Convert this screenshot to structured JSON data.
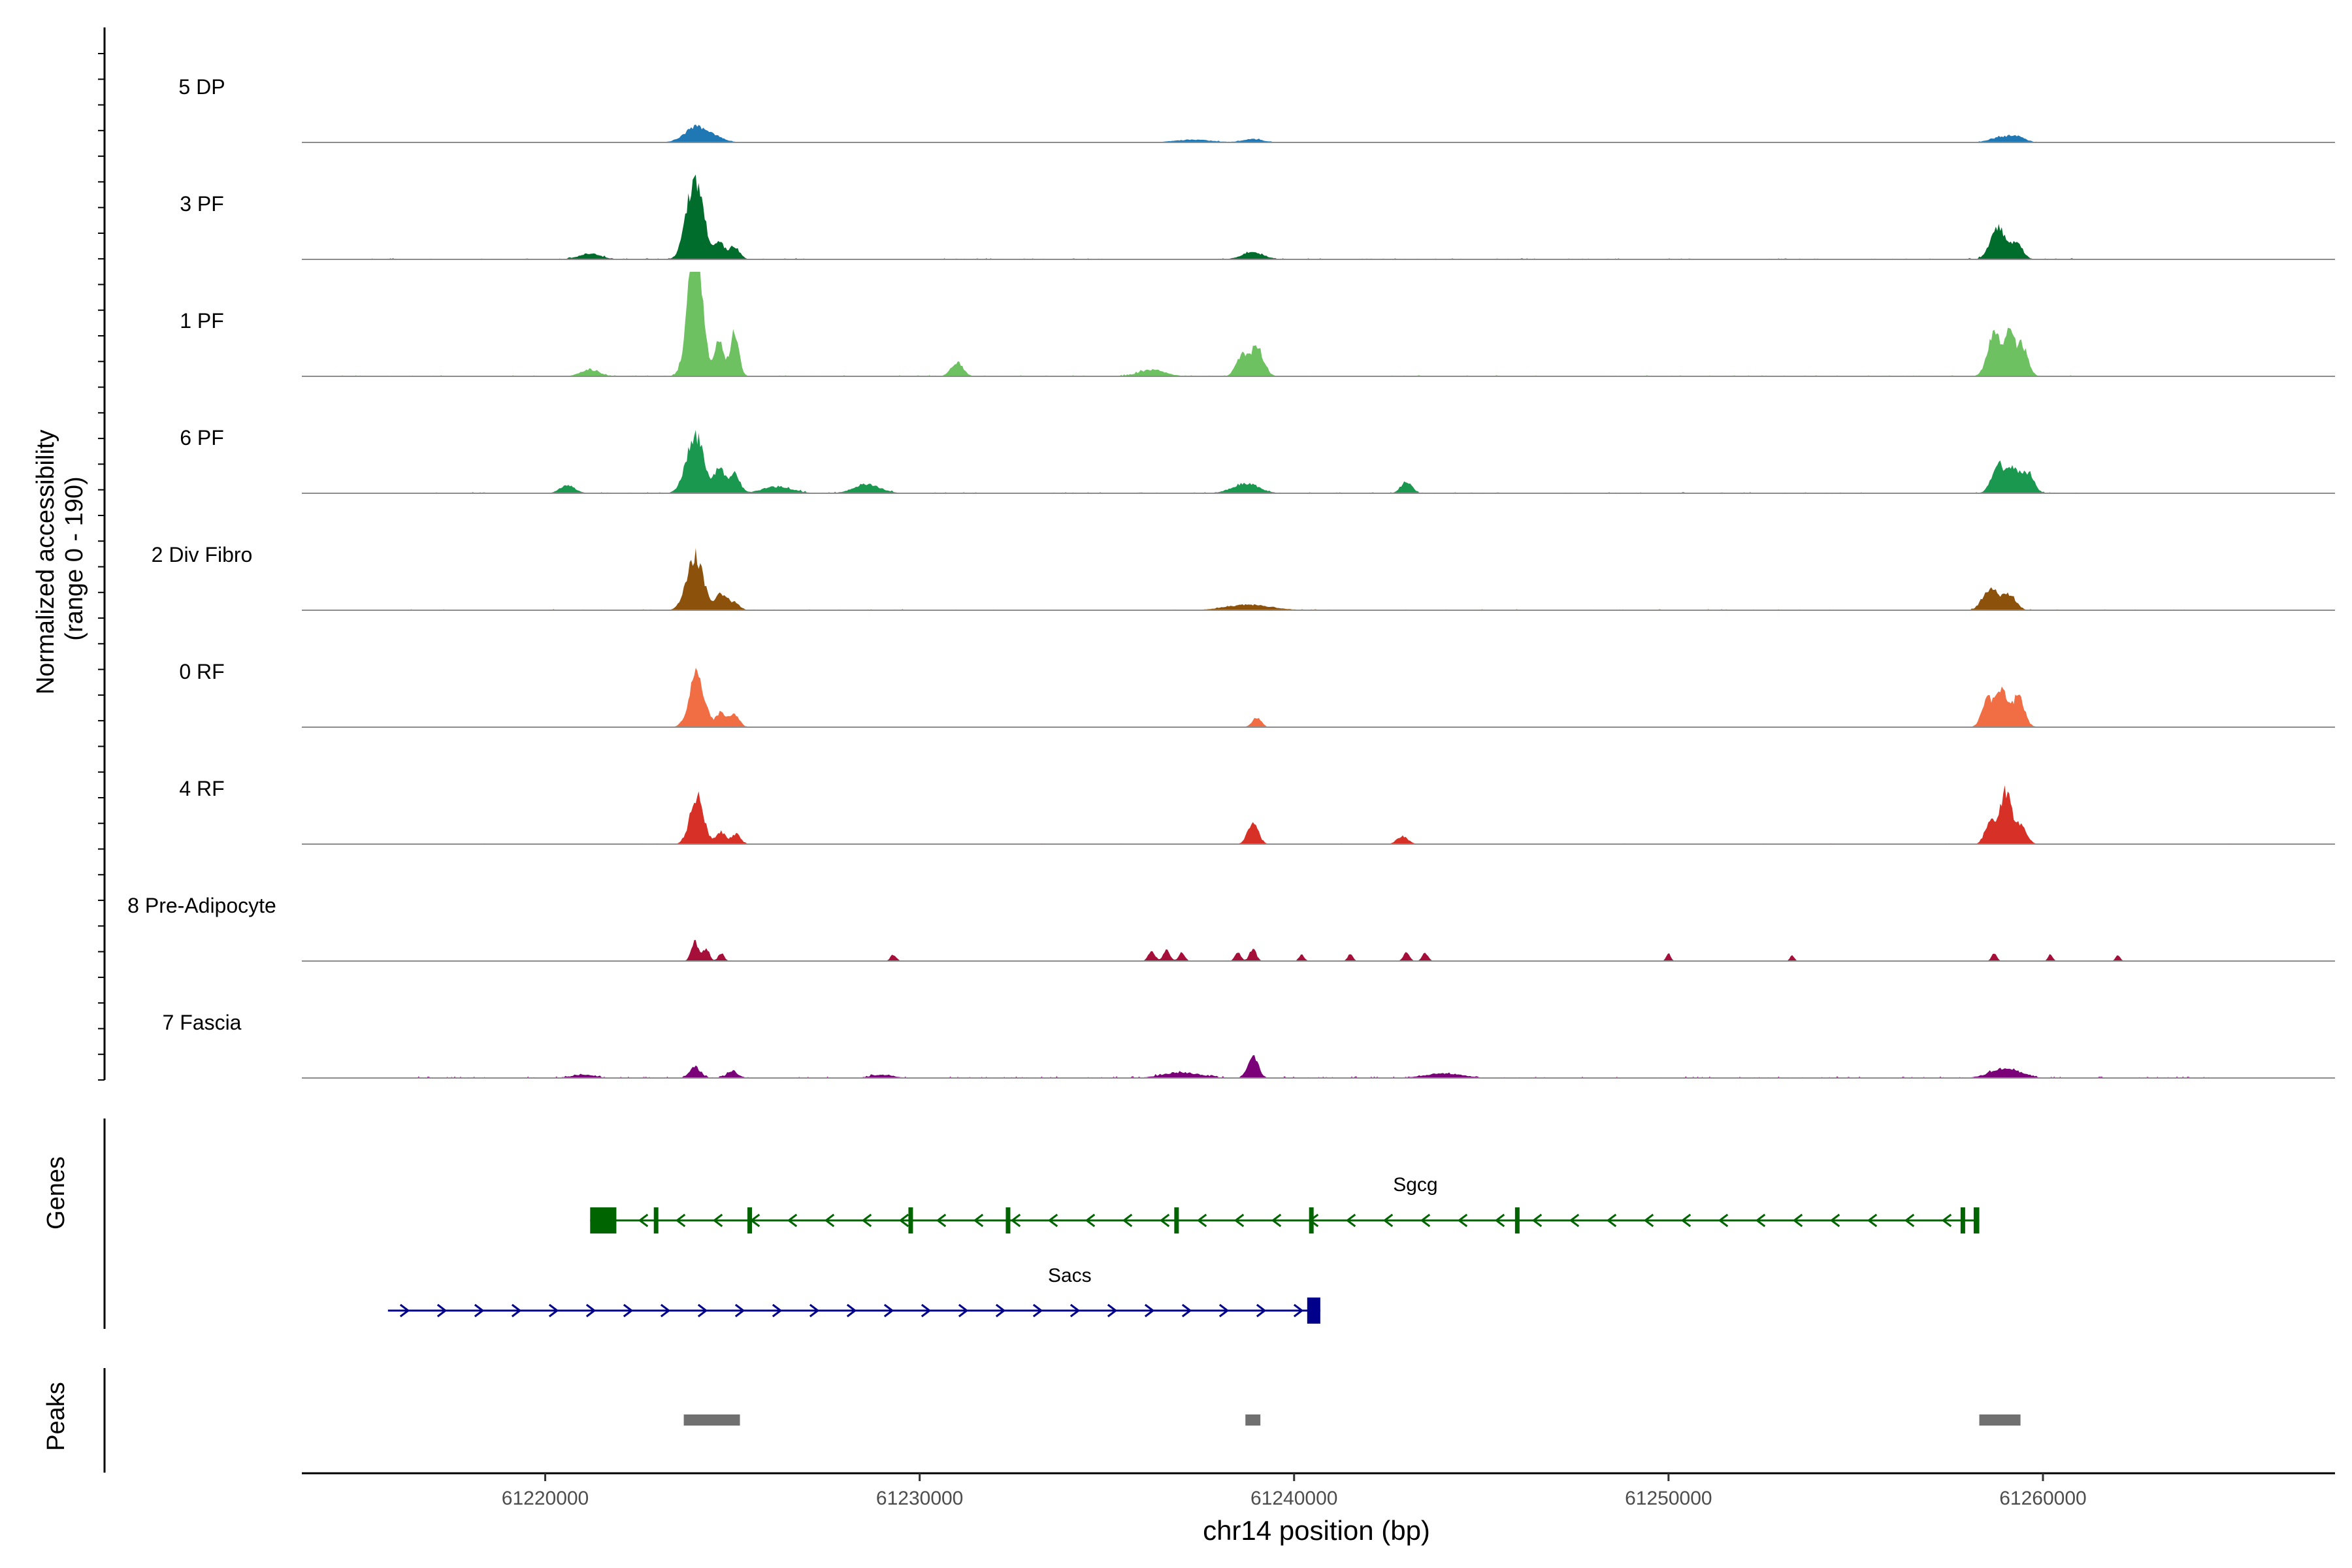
{
  "chart_data": {
    "type": "area",
    "title": "",
    "ylabel_line1": "Normalized accessibility",
    "ylabel_line2": "(range 0 - 190)",
    "yrange": [
      0,
      190
    ],
    "xlabel": "chr14 position (bp)",
    "xlim": [
      61213500,
      61267800
    ],
    "xticks": [
      61220000,
      61230000,
      61240000,
      61250000,
      61260000
    ],
    "xtick_labels": [
      "61220000",
      "61230000",
      "61240000",
      "61250000",
      "61260000"
    ],
    "tracks": [
      {
        "name": "5 DP",
        "color": "#1f78b4",
        "peaks": [
          [
            61224050,
            28,
            320
          ],
          [
            61224600,
            6,
            250
          ],
          [
            61237300,
            5,
            500
          ],
          [
            61238900,
            6,
            280
          ],
          [
            61258900,
            10,
            300
          ],
          [
            61259350,
            8,
            200
          ]
        ],
        "noise": 0.03,
        "noise_range": [
          61214500,
          61265500
        ]
      },
      {
        "name": "3 PF",
        "color": "#006d2c",
        "peaks": [
          [
            61224000,
            150,
            220
          ],
          [
            61224650,
            30,
            140
          ],
          [
            61225050,
            22,
            140
          ],
          [
            61221200,
            10,
            300
          ],
          [
            61238900,
            12,
            300
          ],
          [
            61258800,
            58,
            200
          ],
          [
            61259300,
            28,
            160
          ]
        ],
        "noise": 0.06,
        "noise_range": [
          61214500,
          61261000
        ]
      },
      {
        "name": "1 PF",
        "color": "#6dc160",
        "peaks": [
          [
            61224000,
            245,
            190
          ],
          [
            61224650,
            65,
            110
          ],
          [
            61225050,
            78,
            120
          ],
          [
            61221200,
            12,
            250
          ],
          [
            61231000,
            25,
            160
          ],
          [
            61236200,
            12,
            350
          ],
          [
            61238600,
            35,
            150
          ],
          [
            61239000,
            52,
            180
          ],
          [
            61258700,
            75,
            180
          ],
          [
            61259100,
            68,
            140
          ],
          [
            61259450,
            55,
            150
          ]
        ],
        "noise": 0.06,
        "noise_range": [
          61214500,
          61261000
        ]
      },
      {
        "name": "6 PF",
        "color": "#1a9850",
        "peaks": [
          [
            61224000,
            105,
            230
          ],
          [
            61224650,
            45,
            130
          ],
          [
            61225050,
            38,
            140
          ],
          [
            61220600,
            14,
            200
          ],
          [
            61226200,
            12,
            400
          ],
          [
            61228600,
            16,
            350
          ],
          [
            61238700,
            18,
            350
          ],
          [
            61243000,
            20,
            150
          ],
          [
            61258800,
            52,
            170
          ],
          [
            61259200,
            45,
            150
          ],
          [
            61259600,
            38,
            160
          ]
        ],
        "noise": 0.06,
        "noise_range": [
          61214500,
          61261000
        ]
      },
      {
        "name": "2 Div Fibro",
        "color": "#8c510a",
        "peaks": [
          [
            61224000,
            98,
            220
          ],
          [
            61224700,
            30,
            140
          ],
          [
            61225050,
            14,
            140
          ],
          [
            61238800,
            10,
            600
          ],
          [
            61258600,
            40,
            200
          ],
          [
            61259100,
            26,
            180
          ]
        ],
        "noise": 0.05,
        "noise_range": [
          61216000,
          61265000
        ]
      },
      {
        "name": "0 RF",
        "color": "#f16d43",
        "peaks": [
          [
            61224050,
            95,
            200
          ],
          [
            61224700,
            26,
            130
          ],
          [
            61225050,
            24,
            130
          ],
          [
            61239000,
            18,
            120
          ],
          [
            61258500,
            50,
            140
          ],
          [
            61258900,
            65,
            160
          ],
          [
            61259350,
            58,
            150
          ]
        ],
        "noise": 0.02,
        "noise_range": [
          61216000,
          61265500
        ]
      },
      {
        "name": "4 RF",
        "color": "#d73027",
        "peaks": [
          [
            61224050,
            88,
            180
          ],
          [
            61224700,
            22,
            130
          ],
          [
            61225100,
            18,
            120
          ],
          [
            61238900,
            38,
            140
          ],
          [
            61242900,
            14,
            150
          ],
          [
            61258600,
            40,
            140
          ],
          [
            61259000,
            95,
            150
          ],
          [
            61259400,
            32,
            160
          ]
        ],
        "noise": 0.04,
        "noise_range": [
          61216000,
          61265500
        ]
      },
      {
        "name": "8 Pre-Adipocyte",
        "color": "#a50f3a",
        "peaks": [
          [
            61224000,
            34,
            100
          ],
          [
            61224300,
            22,
            90
          ],
          [
            61224700,
            14,
            80
          ],
          [
            61229300,
            12,
            80
          ],
          [
            61236200,
            18,
            90
          ],
          [
            61236600,
            20,
            90
          ],
          [
            61237000,
            16,
            80
          ],
          [
            61238500,
            16,
            80
          ],
          [
            61238900,
            22,
            90
          ],
          [
            61240200,
            12,
            70
          ],
          [
            61241500,
            12,
            70
          ],
          [
            61243000,
            16,
            80
          ],
          [
            61243500,
            14,
            80
          ],
          [
            61250000,
            14,
            60
          ],
          [
            61253300,
            10,
            60
          ],
          [
            61258700,
            14,
            70
          ],
          [
            61260200,
            12,
            60
          ],
          [
            61262000,
            12,
            60
          ]
        ],
        "noise": 0.0,
        "noise_range": [
          61224000,
          61262000
        ]
      },
      {
        "name": "7 Fascia",
        "color": "#7a0177",
        "peaks": [
          [
            61224000,
            20,
            150
          ],
          [
            61225000,
            12,
            150
          ],
          [
            61238900,
            40,
            140
          ],
          [
            61237000,
            10,
            500
          ],
          [
            61244000,
            8,
            500
          ],
          [
            61259000,
            18,
            400
          ],
          [
            61221000,
            6,
            300
          ],
          [
            61229000,
            6,
            300
          ]
        ],
        "noise": 0.08,
        "noise_range": [
          61216500,
          61265000
        ]
      }
    ],
    "genes_label": "Genes",
    "genes": [
      {
        "name": "Sgcg",
        "color": "#006400",
        "strand": "-",
        "start": 61221200,
        "end": 61258300,
        "exons": [
          [
            61221200,
            61221900
          ],
          [
            61222900,
            61223000
          ],
          [
            61225400,
            61225500
          ],
          [
            61229700,
            61229760
          ],
          [
            61232300,
            61232400
          ],
          [
            61236800,
            61236880
          ],
          [
            61240400,
            61240480
          ],
          [
            61245900,
            61246000
          ],
          [
            61257800,
            61257900
          ],
          [
            61258150,
            61258300
          ]
        ]
      },
      {
        "name": "Sacs",
        "color": "#00008b",
        "strand": "+",
        "start": 61215800,
        "end": 61240700,
        "exons": [
          [
            61240350,
            61240700
          ]
        ]
      }
    ],
    "peaks_label": "Peaks",
    "peak_regions": [
      [
        61223700,
        61225200
      ],
      [
        61238700,
        61239100
      ],
      [
        61258300,
        61259400
      ]
    ]
  }
}
